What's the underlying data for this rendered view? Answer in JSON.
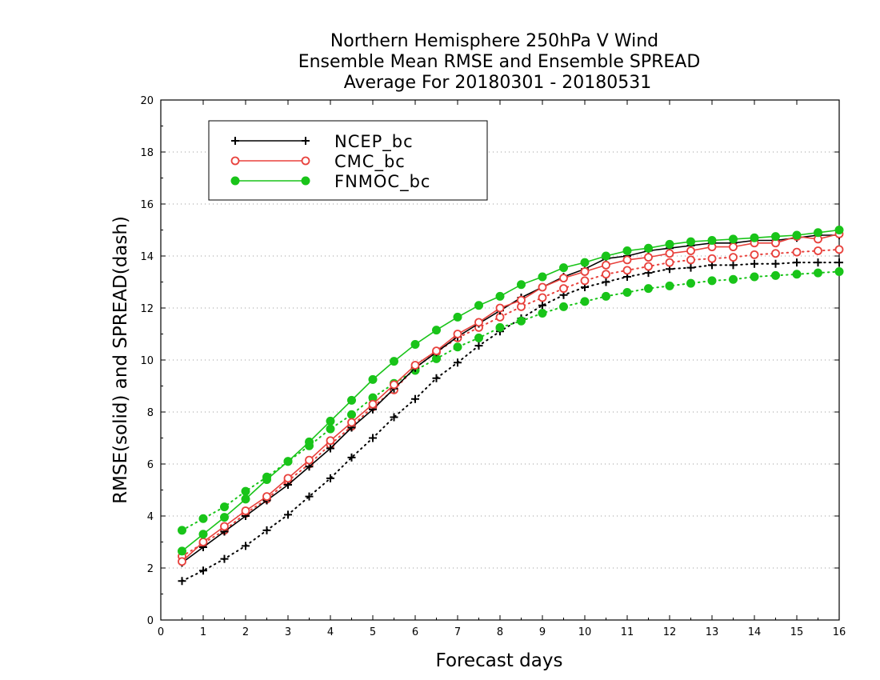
{
  "chart_data": {
    "type": "line",
    "title": [
      "Northern Hemisphere 250hPa V Wind",
      "Ensemble Mean RMSE and Ensemble SPREAD",
      "Average For 20180301 - 20180531"
    ],
    "xlabel": "Forecast days",
    "ylabel": "RMSE(solid) and SPREAD(dash)",
    "xlim": [
      0,
      16
    ],
    "ylim": [
      0,
      20
    ],
    "x_ticks": [
      0,
      1,
      2,
      3,
      4,
      5,
      6,
      7,
      8,
      9,
      10,
      11,
      12,
      13,
      14,
      15,
      16
    ],
    "y_ticks": [
      0,
      2,
      4,
      6,
      8,
      10,
      12,
      14,
      16,
      18,
      20
    ],
    "grid": true,
    "legend_position": "top-left",
    "x": [
      0.5,
      1,
      1.5,
      2,
      2.5,
      3,
      3.5,
      4,
      4.5,
      5,
      5.5,
      6,
      6.5,
      7,
      7.5,
      8,
      8.5,
      9,
      9.5,
      10,
      10.5,
      11,
      11.5,
      12,
      12.5,
      13,
      13.5,
      14,
      14.5,
      15,
      15.5,
      16
    ],
    "series": [
      {
        "name": "NCEP_bc",
        "metric": "RMSE",
        "color": "#000000",
        "marker": "plus",
        "line": "solid",
        "values": [
          2.2,
          2.8,
          3.4,
          4.0,
          4.6,
          5.2,
          5.9,
          6.6,
          7.4,
          8.1,
          8.9,
          9.7,
          10.3,
          10.9,
          11.4,
          11.9,
          12.4,
          12.8,
          13.2,
          13.5,
          13.9,
          14.0,
          14.2,
          14.3,
          14.4,
          14.5,
          14.5,
          14.6,
          14.6,
          14.7,
          14.8,
          14.8
        ]
      },
      {
        "name": "NCEP_bc",
        "metric": "SPREAD",
        "color": "#000000",
        "marker": "plus",
        "line": "dotted",
        "values": [
          1.5,
          1.9,
          2.35,
          2.85,
          3.45,
          4.05,
          4.75,
          5.45,
          6.25,
          7.0,
          7.8,
          8.5,
          9.3,
          9.9,
          10.55,
          11.1,
          11.6,
          12.1,
          12.5,
          12.8,
          13.0,
          13.2,
          13.35,
          13.5,
          13.55,
          13.65,
          13.65,
          13.7,
          13.7,
          13.75,
          13.75,
          13.75
        ]
      },
      {
        "name": "CMC_bc",
        "metric": "RMSE",
        "color": "#e8413c",
        "marker": "open-circle",
        "line": "solid",
        "values": [
          2.25,
          3.0,
          3.6,
          4.2,
          4.75,
          5.45,
          6.15,
          6.9,
          7.6,
          8.3,
          9.05,
          9.8,
          10.35,
          11.0,
          11.45,
          12.0,
          12.3,
          12.8,
          13.15,
          13.4,
          13.65,
          13.85,
          13.95,
          14.1,
          14.2,
          14.35,
          14.35,
          14.5,
          14.5,
          14.75,
          14.65,
          14.85
        ]
      },
      {
        "name": "CMC_bc",
        "metric": "SPREAD",
        "color": "#e8413c",
        "marker": "open-circle",
        "line": "dotted",
        "values": [
          2.45,
          2.95,
          3.45,
          4.1,
          4.65,
          5.35,
          6.0,
          6.75,
          7.45,
          8.2,
          8.85,
          9.7,
          10.3,
          10.85,
          11.25,
          11.65,
          12.05,
          12.4,
          12.75,
          13.05,
          13.3,
          13.45,
          13.6,
          13.75,
          13.85,
          13.9,
          13.95,
          14.05,
          14.1,
          14.15,
          14.2,
          14.25
        ]
      },
      {
        "name": "FNMOC_bc",
        "metric": "RMSE",
        "color": "#19c419",
        "marker": "filled-circle",
        "line": "solid",
        "values": [
          2.65,
          3.3,
          3.95,
          4.65,
          5.4,
          6.1,
          6.85,
          7.65,
          8.45,
          9.25,
          9.95,
          10.6,
          11.15,
          11.65,
          12.1,
          12.45,
          12.9,
          13.2,
          13.55,
          13.75,
          14.0,
          14.2,
          14.3,
          14.45,
          14.55,
          14.6,
          14.65,
          14.7,
          14.75,
          14.8,
          14.9,
          15.0
        ]
      },
      {
        "name": "FNMOC_bc",
        "metric": "SPREAD",
        "color": "#19c419",
        "marker": "filled-circle",
        "line": "dotted",
        "values": [
          3.45,
          3.9,
          4.35,
          4.95,
          5.5,
          6.1,
          6.7,
          7.35,
          7.9,
          8.55,
          9.1,
          9.6,
          10.05,
          10.5,
          10.85,
          11.25,
          11.5,
          11.8,
          12.05,
          12.25,
          12.45,
          12.6,
          12.75,
          12.85,
          12.95,
          13.05,
          13.1,
          13.2,
          13.25,
          13.3,
          13.35,
          13.4
        ]
      }
    ],
    "legend": [
      {
        "label": "NCEP_bc",
        "color": "#000000",
        "marker": "plus"
      },
      {
        "label": "CMC_bc",
        "color": "#e8413c",
        "marker": "open-circle"
      },
      {
        "label": "FNMOC_bc",
        "color": "#19c419",
        "marker": "filled-circle"
      }
    ]
  }
}
